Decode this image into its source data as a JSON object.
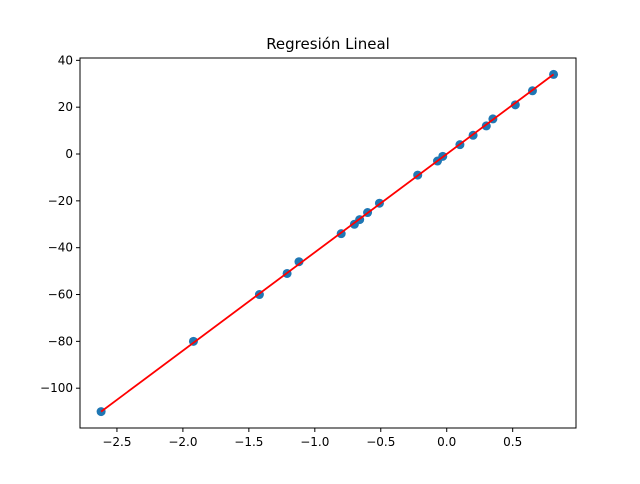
{
  "chart_data": {
    "type": "scatter",
    "title": "Regresión Lineal",
    "xlabel": "",
    "ylabel": "",
    "xlim": [
      -2.78,
      0.98
    ],
    "ylim": [
      -117,
      41
    ],
    "x_ticks": [
      -2.5,
      -2.0,
      -1.5,
      -1.0,
      -0.5,
      0.0,
      0.5
    ],
    "x_tick_labels": [
      "−2.5",
      "−2.0",
      "−1.5",
      "−1.0",
      "−0.5",
      "0.0",
      "0.5"
    ],
    "y_ticks": [
      -100,
      -80,
      -60,
      -40,
      -20,
      0,
      20,
      40
    ],
    "y_tick_labels": [
      "−100",
      "−80",
      "−60",
      "−40",
      "−20",
      "0",
      "20",
      "40"
    ],
    "grid": false,
    "series": [
      {
        "kind": "points",
        "color": "#1f77b4",
        "x": [
          -2.62,
          -1.92,
          -1.42,
          -1.21,
          -1.12,
          -0.8,
          -0.7,
          -0.66,
          -0.6,
          -0.51,
          -0.22,
          -0.07,
          -0.03,
          0.1,
          0.2,
          0.3,
          0.35,
          0.52,
          0.65,
          0.81
        ],
        "y": [
          -110,
          -80,
          -60,
          -51,
          -46,
          -34,
          -30,
          -28,
          -25,
          -21,
          -9,
          -3,
          -1,
          4,
          8,
          12,
          15,
          21,
          27,
          34
        ]
      },
      {
        "kind": "fit-line",
        "color": "#ff0000",
        "x": [
          -2.62,
          0.81
        ],
        "y": [
          -110,
          34
        ]
      }
    ]
  }
}
